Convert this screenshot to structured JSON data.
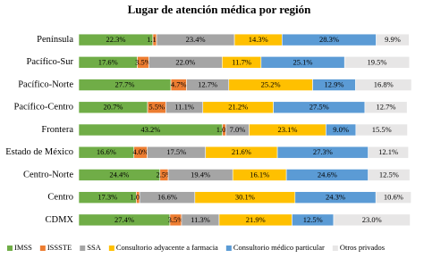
{
  "chart_data": {
    "type": "stacked-bar-horizontal",
    "title": "Lugar de atención médica por región",
    "categories": [
      "Península",
      "Pacífico-Sur",
      "Pacífico-Norte",
      "Pacífico-Centro",
      "Frontera",
      "Estado de México",
      "Centro-Norte",
      "Centro",
      "CDMX"
    ],
    "xlim": [
      0,
      100
    ],
    "legend": "bottom",
    "series": [
      {
        "name": "IMSS",
        "color": "#70ad47",
        "values": [
          22.3,
          17.6,
          27.7,
          20.7,
          43.2,
          16.6,
          24.4,
          17.3,
          27.4
        ],
        "value_labels": [
          "22.3%",
          "17.6%",
          "27.7%",
          "20.7%",
          "43.2%",
          "16.6%",
          "24.4%",
          "17.3%",
          "27.4%"
        ]
      },
      {
        "name": "ISSSTE",
        "color": "#ed7d31",
        "values": [
          1.1,
          3.5,
          4.7,
          5.5,
          1.0,
          4.0,
          2.5,
          1.0,
          3.5
        ],
        "value_labels": [
          "1.1%",
          "3.5%",
          "4.7%",
          "5.5%",
          "1.0%",
          "4.0%",
          "2.5%",
          "1.0%",
          "3.5%"
        ]
      },
      {
        "name": "SSA",
        "color": "#a5a5a5",
        "values": [
          23.4,
          22.0,
          12.7,
          11.1,
          7.0,
          17.5,
          19.4,
          16.6,
          11.3
        ],
        "value_labels": [
          "23.4%",
          "22.0%",
          "12.7%",
          "11.1%",
          "7.0%",
          "17.5%",
          "19.4%",
          "16.6%",
          "11.3%"
        ]
      },
      {
        "name": "Consultorio adyacente a farmacia",
        "color": "#ffc000",
        "values": [
          14.3,
          11.7,
          25.2,
          21.2,
          23.1,
          21.6,
          16.1,
          30.1,
          21.9
        ],
        "value_labels": [
          "14.3%",
          "11.7%",
          "25.2%",
          "21.2%",
          "23.1%",
          "21.6%",
          "16.1%",
          "30.1%",
          "21.9%"
        ]
      },
      {
        "name": "Consultorio médico particular",
        "color": "#5b9bd5",
        "values": [
          28.3,
          25.1,
          12.9,
          27.5,
          9.0,
          27.3,
          24.6,
          24.3,
          12.5
        ],
        "value_labels": [
          "28.3%",
          "25.1%",
          "12.9%",
          "27.5%",
          "9.0%",
          "27.3%",
          "24.6%",
          "24.3%",
          "12.5%"
        ]
      },
      {
        "name": "Otros privados",
        "color": "#e7e6e6",
        "values": [
          9.9,
          19.5,
          16.8,
          12.7,
          15.5,
          12.1,
          12.5,
          10.6,
          23.0
        ],
        "value_labels": [
          "9.9%",
          "19.5%",
          "16.8%",
          "12.7%",
          "15.5%",
          "12.1%",
          "12.5%",
          "10.6%",
          "23.0%"
        ]
      }
    ]
  }
}
